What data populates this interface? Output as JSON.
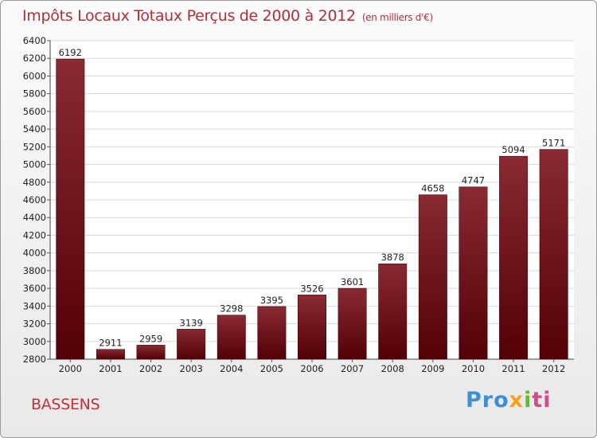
{
  "title": "Impôts Locaux Totaux Perçus de 2000 à 2012",
  "unit": "(en milliers d'€)",
  "commune": "BASSENS",
  "logo": {
    "p1": "Pro",
    "p2": "x",
    "p3": "i",
    "p4": "ti"
  },
  "colors": {
    "bar_top": "#8a2a33",
    "bar_bottom": "#520005",
    "title": "#a8323a",
    "grid": "#d9d9d9"
  },
  "chart_data": {
    "type": "bar",
    "title": "Impôts Locaux Totaux Perçus de 2000 à 2012",
    "subtitle": "(en milliers d'€)",
    "categories": [
      "2000",
      "2001",
      "2002",
      "2003",
      "2004",
      "2005",
      "2006",
      "2007",
      "2008",
      "2009",
      "2010",
      "2011",
      "2012"
    ],
    "values": [
      6192,
      2911,
      2959,
      3139,
      3298,
      3395,
      3526,
      3601,
      3878,
      4658,
      4747,
      5094,
      5171
    ],
    "xlabel": "",
    "ylabel": "",
    "ylim": [
      2800,
      6400
    ],
    "yticks": [
      2800,
      3000,
      3200,
      3400,
      3600,
      3800,
      4000,
      4200,
      4400,
      4600,
      4800,
      5000,
      5200,
      5400,
      5600,
      5800,
      6000,
      6200,
      6400
    ],
    "grid": true
  }
}
